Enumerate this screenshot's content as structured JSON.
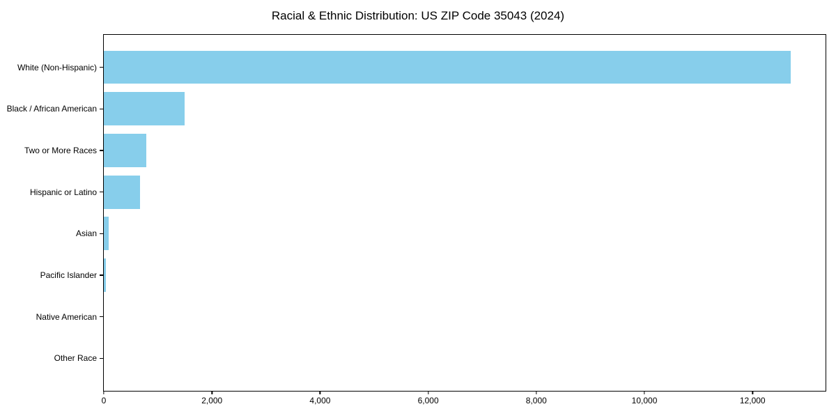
{
  "chart_data": {
    "type": "bar",
    "orientation": "horizontal",
    "title": "Racial & Ethnic Distribution: US ZIP Code 35043 (2024)",
    "categories": [
      "White (Non-Hispanic)",
      "Black / African American",
      "Two or More Races",
      "Hispanic or Latino",
      "Asian",
      "Pacific Islander",
      "Native American",
      "Other Race"
    ],
    "values": [
      12700,
      1500,
      790,
      670,
      95,
      35,
      0,
      0
    ],
    "xlabel": "",
    "ylabel": "",
    "xlim": [
      0,
      13350
    ],
    "xticks": [
      0,
      2000,
      4000,
      6000,
      8000,
      10000,
      12000
    ],
    "xtick_labels": [
      "0",
      "2,000",
      "4,000",
      "6,000",
      "8,000",
      "10,000",
      "12,000"
    ],
    "bar_color": "#87CEEB",
    "axis_color": "#000000",
    "text_color": "#000000",
    "grid": false,
    "legend": false
  }
}
